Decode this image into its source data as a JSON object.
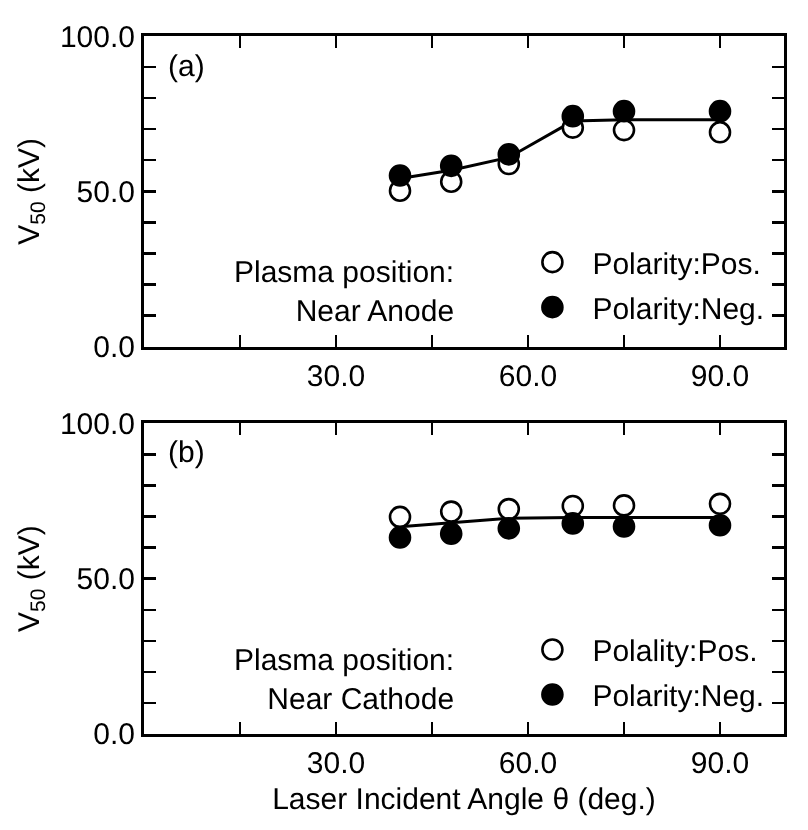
{
  "chart_data": [
    {
      "type": "scatter",
      "ylabel": "V$_{50}$ (kV)",
      "annotations": [
        "(a)",
        "Plasma position:\nNear Anode"
      ],
      "x": [
        40,
        48,
        57,
        67,
        75,
        90
      ],
      "xlim": [
        0,
        100
      ],
      "ylim": [
        0,
        100
      ],
      "xticks": [
        {
          "value": 0,
          "label": null
        },
        {
          "value": 15,
          "label": null
        },
        {
          "value": 30,
          "label": "30.0"
        },
        {
          "value": 45,
          "label": null
        },
        {
          "value": 60,
          "label": "60.0"
        },
        {
          "value": 75,
          "label": null
        },
        {
          "value": 90,
          "label": "90.0"
        }
      ],
      "yticks": [
        {
          "value": 0,
          "label": "0.0"
        },
        {
          "value": 10,
          "label": null
        },
        {
          "value": 20,
          "label": null
        },
        {
          "value": 30,
          "label": null
        },
        {
          "value": 40,
          "label": null
        },
        {
          "value": 50,
          "label": "50.0"
        },
        {
          "value": 60,
          "label": null
        },
        {
          "value": 70,
          "label": null
        },
        {
          "value": 80,
          "label": null
        },
        {
          "value": 90,
          "label": null
        },
        {
          "value": 100,
          "label": "100.0"
        }
      ],
      "grid": false,
      "legend": "bottom right",
      "marker": "circle",
      "series": [
        {
          "name": "Polarity:Pos.",
          "color": "#ffffff",
          "values": [
            50.2,
            53.1,
            58.8,
            70.5,
            69.7,
            69.0
          ]
        },
        {
          "name": "Polarity:Neg.",
          "color": "#000000",
          "values": [
            55.1,
            58.2,
            61.9,
            74.2,
            75.8,
            75.8
          ]
        },
        {
          "type": "line",
          "color": "#000000",
          "marker": "none",
          "x": [
            40,
            48,
            57,
            67,
            75,
            90
          ],
          "values": [
            54.1,
            56.8,
            60.9,
            72.6,
            73.0,
            73.0
          ]
        }
      ]
    },
    {
      "type": "scatter",
      "xlabel": "Laser Incident Angle θ (deg.)",
      "ylabel": "V$_{50}$ (kV)",
      "annotations": [
        "(b)",
        "Plasma position:\nNear Cathode"
      ],
      "x": [
        40,
        48,
        57,
        67,
        75,
        90
      ],
      "xlim": [
        0,
        100
      ],
      "ylim": [
        0,
        100
      ],
      "xticks": [
        {
          "value": 0,
          "label": null
        },
        {
          "value": 15,
          "label": null
        },
        {
          "value": 30,
          "label": "30.0"
        },
        {
          "value": 45,
          "label": null
        },
        {
          "value": 60,
          "label": "60.0"
        },
        {
          "value": 75,
          "label": null
        },
        {
          "value": 90,
          "label": "90.0"
        }
      ],
      "yticks": [
        {
          "value": 0,
          "label": "0.0"
        },
        {
          "value": 10,
          "label": null
        },
        {
          "value": 20,
          "label": null
        },
        {
          "value": 30,
          "label": null
        },
        {
          "value": 40,
          "label": null
        },
        {
          "value": 50,
          "label": "50.0"
        },
        {
          "value": 60,
          "label": null
        },
        {
          "value": 70,
          "label": null
        },
        {
          "value": 80,
          "label": null
        },
        {
          "value": 90,
          "label": null
        },
        {
          "value": 100,
          "label": "100.0"
        }
      ],
      "grid": false,
      "legend": "bottom right",
      "marker": "circle",
      "series": [
        {
          "name": "Polality:Pos.",
          "color": "#ffffff",
          "values": [
            69.9,
            71.6,
            72.4,
            73.4,
            73.6,
            74.1
          ]
        },
        {
          "name": "Polarity:Neg.",
          "color": "#000000",
          "values": [
            63.3,
            64.5,
            66.2,
            67.8,
            66.8,
            67.2
          ]
        },
        {
          "type": "line",
          "color": "#000000",
          "marker": "none",
          "x": [
            40,
            48,
            57,
            67,
            75,
            90
          ],
          "values": [
            66.7,
            68.0,
            69.5,
            69.7,
            69.7,
            69.7
          ]
        }
      ]
    }
  ]
}
